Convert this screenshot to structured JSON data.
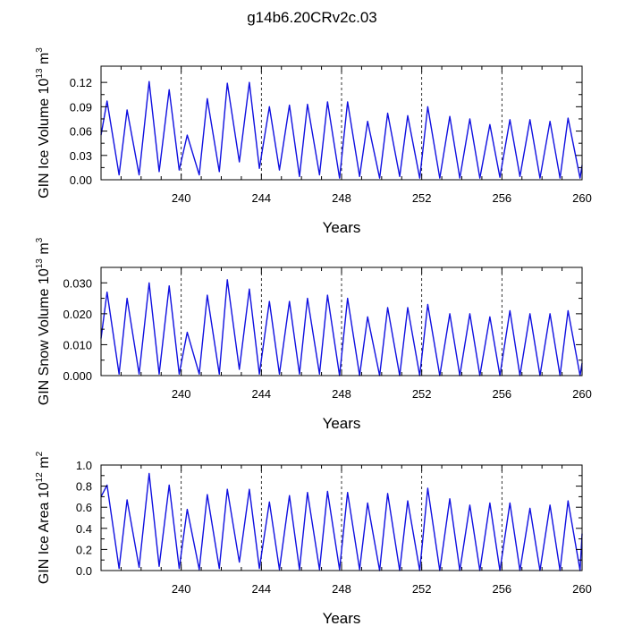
{
  "title": "g14b6.20CRv2c.03",
  "chart_data": [
    {
      "type": "line",
      "ylabel": {
        "prefix": "GIN Ice Volume 10",
        "exp": "13",
        "unit": " m",
        "unit_exp": "3"
      },
      "xlabel": "Years",
      "xlim": [
        236,
        260
      ],
      "ylim": [
        0,
        0.14
      ],
      "xticks": [
        240,
        244,
        248,
        252,
        256,
        260
      ],
      "xtick_labels": [
        "240",
        "244",
        "248",
        "252",
        "256",
        "260"
      ],
      "yticks": [
        0,
        0.03,
        0.06,
        0.09,
        0.12
      ],
      "ytick_labels": [
        "0.00",
        "0.03",
        "0.06",
        "0.09",
        "0.12"
      ],
      "reference_lines_x": [
        240,
        244,
        248,
        252,
        256
      ],
      "line_color": "#1010e0",
      "x": [
        236.0,
        236.3,
        236.9,
        237.3,
        237.9,
        238.4,
        238.9,
        239.4,
        239.9,
        240.3,
        240.9,
        241.3,
        241.9,
        242.3,
        242.9,
        243.4,
        243.9,
        244.4,
        244.9,
        245.4,
        245.9,
        246.3,
        246.9,
        247.3,
        247.9,
        248.3,
        248.9,
        249.3,
        249.9,
        250.3,
        250.9,
        251.3,
        251.9,
        252.3,
        252.9,
        253.4,
        253.9,
        254.4,
        254.9,
        255.4,
        255.9,
        256.4,
        256.9,
        257.4,
        257.9,
        258.4,
        258.9,
        259.3,
        259.9,
        260.0
      ],
      "y": [
        0.055,
        0.097,
        0.006,
        0.086,
        0.006,
        0.121,
        0.01,
        0.111,
        0.012,
        0.055,
        0.006,
        0.1,
        0.01,
        0.119,
        0.022,
        0.12,
        0.014,
        0.09,
        0.012,
        0.092,
        0.004,
        0.093,
        0.006,
        0.096,
        0.002,
        0.096,
        0.004,
        0.072,
        0.002,
        0.082,
        0.004,
        0.079,
        0.002,
        0.09,
        0.002,
        0.078,
        0.002,
        0.075,
        0.002,
        0.068,
        0.003,
        0.074,
        0.004,
        0.074,
        0.002,
        0.072,
        0.002,
        0.076,
        0.002,
        0.018
      ]
    },
    {
      "type": "line",
      "ylabel": {
        "prefix": "GIN Snow Volume 10",
        "exp": "13",
        "unit": " m",
        "unit_exp": "3"
      },
      "xlabel": "Years",
      "xlim": [
        236,
        260
      ],
      "ylim": [
        0,
        0.035
      ],
      "xticks": [
        240,
        244,
        248,
        252,
        256,
        260
      ],
      "xtick_labels": [
        "240",
        "244",
        "248",
        "252",
        "256",
        "260"
      ],
      "yticks": [
        0,
        0.01,
        0.02,
        0.03
      ],
      "ytick_labels": [
        "0.000",
        "0.010",
        "0.020",
        "0.030"
      ],
      "reference_lines_x": [
        240,
        244,
        248,
        252,
        256
      ],
      "line_color": "#1010e0",
      "x": [
        236.0,
        236.3,
        236.9,
        237.3,
        237.9,
        238.4,
        238.9,
        239.4,
        239.9,
        240.3,
        240.9,
        241.3,
        241.9,
        242.3,
        242.9,
        243.4,
        243.9,
        244.4,
        244.9,
        245.4,
        245.9,
        246.3,
        246.9,
        247.3,
        247.9,
        248.3,
        248.9,
        249.3,
        249.9,
        250.3,
        250.9,
        251.3,
        251.9,
        252.3,
        252.9,
        253.4,
        253.9,
        254.4,
        254.9,
        255.4,
        255.9,
        256.4,
        256.9,
        257.4,
        257.9,
        258.4,
        258.9,
        259.3,
        259.9,
        260.0
      ],
      "y": [
        0.012,
        0.027,
        0.0005,
        0.025,
        0.0005,
        0.03,
        0.0005,
        0.029,
        0.0005,
        0.014,
        0.0005,
        0.026,
        0.0005,
        0.031,
        0.002,
        0.028,
        0.0005,
        0.024,
        0.0005,
        0.024,
        0.0005,
        0.025,
        0.0005,
        0.026,
        0.0,
        0.025,
        0.0,
        0.019,
        0.0,
        0.022,
        0.0,
        0.022,
        0.0,
        0.023,
        0.0,
        0.02,
        0.0,
        0.02,
        0.0,
        0.019,
        0.0,
        0.021,
        0.0,
        0.02,
        0.0,
        0.02,
        0.0,
        0.021,
        0.0,
        0.004
      ]
    },
    {
      "type": "line",
      "ylabel": {
        "prefix": "GIN Ice Area 10",
        "exp": "12",
        "unit": " m",
        "unit_exp": "2"
      },
      "xlabel": "Years",
      "xlim": [
        236,
        260
      ],
      "ylim": [
        0,
        1.0
      ],
      "xticks": [
        240,
        244,
        248,
        252,
        256,
        260
      ],
      "xtick_labels": [
        "240",
        "244",
        "248",
        "252",
        "256",
        "260"
      ],
      "yticks": [
        0,
        0.2,
        0.4,
        0.6,
        0.8,
        1.0
      ],
      "ytick_labels": [
        "0.0",
        "0.2",
        "0.4",
        "0.6",
        "0.8",
        "1.0"
      ],
      "reference_lines_x": [
        240,
        244,
        248,
        252,
        256
      ],
      "line_color": "#1010e0",
      "x": [
        236.0,
        236.3,
        236.9,
        237.3,
        237.9,
        238.4,
        238.9,
        239.4,
        239.9,
        240.3,
        240.9,
        241.3,
        241.9,
        242.3,
        242.9,
        243.4,
        243.9,
        244.4,
        244.9,
        245.4,
        245.9,
        246.3,
        246.9,
        247.3,
        247.9,
        248.3,
        248.9,
        249.3,
        249.9,
        250.3,
        250.9,
        251.3,
        251.9,
        252.3,
        252.9,
        253.4,
        253.9,
        254.4,
        254.9,
        255.4,
        255.9,
        256.4,
        256.9,
        257.4,
        257.9,
        258.4,
        258.9,
        259.3,
        259.9,
        260.0
      ],
      "y": [
        0.7,
        0.81,
        0.02,
        0.67,
        0.03,
        0.92,
        0.04,
        0.81,
        0.02,
        0.58,
        0.01,
        0.72,
        0.02,
        0.77,
        0.08,
        0.77,
        0.02,
        0.65,
        0.01,
        0.71,
        0.01,
        0.74,
        0.01,
        0.75,
        0.01,
        0.74,
        0.01,
        0.64,
        0.0,
        0.73,
        0.0,
        0.66,
        0.0,
        0.78,
        0.0,
        0.68,
        0.0,
        0.62,
        0.0,
        0.64,
        0.0,
        0.64,
        0.0,
        0.59,
        0.0,
        0.62,
        0.0,
        0.66,
        0.0,
        0.35
      ]
    }
  ]
}
